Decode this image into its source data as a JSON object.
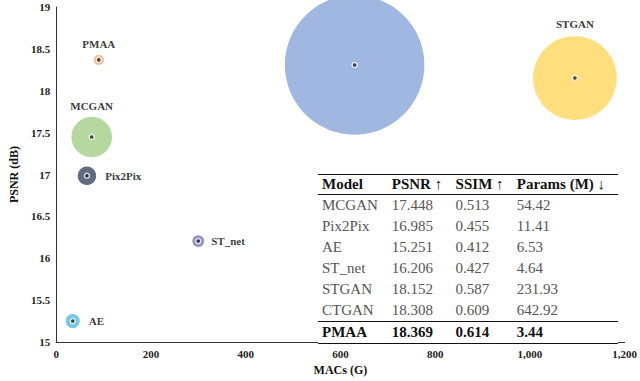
{
  "chart_data": {
    "type": "scatter",
    "marker": "circle",
    "x_label": "MACs (G)",
    "y_label": "PSNR (dB)",
    "xlim": [
      0,
      1200
    ],
    "xticks": [
      0,
      200,
      400,
      600,
      800,
      1000,
      1200
    ],
    "ylim": [
      15,
      19
    ],
    "yticks": [
      15,
      15.5,
      16,
      16.5,
      17,
      17.5,
      18,
      18.5,
      19
    ],
    "grid": false,
    "series": [
      {
        "name": "MCGAN",
        "color": "#a9d18e",
        "x": [
          75
        ],
        "values": [
          17.448
        ],
        "ssim": [
          0.513
        ],
        "params": [
          54.42
        ]
      },
      {
        "name": "Pix2Pix",
        "color": "#44546a",
        "x": [
          65
        ],
        "values": [
          16.985
        ],
        "ssim": [
          0.455
        ],
        "params": [
          11.41
        ]
      },
      {
        "name": "AE",
        "color": "#5bc0de",
        "x": [
          35
        ],
        "values": [
          15.251
        ],
        "ssim": [
          0.412
        ],
        "params": [
          6.53
        ]
      },
      {
        "name": "ST_net",
        "color": "#8080c0",
        "x": [
          300
        ],
        "values": [
          16.206
        ],
        "ssim": [
          0.427
        ],
        "params": [
          4.64
        ]
      },
      {
        "name": "STGAN",
        "color": "#ffd966",
        "x": [
          1095
        ],
        "values": [
          18.152
        ],
        "ssim": [
          0.587
        ],
        "params": [
          231.93
        ]
      },
      {
        "name": "CTGAN",
        "color": "#8faadc",
        "x": [
          630
        ],
        "values": [
          18.308
        ],
        "ssim": [
          0.609
        ],
        "params": [
          642.92
        ]
      },
      {
        "name": "PMAA",
        "color": "#f4b183",
        "x": [
          90
        ],
        "values": [
          18.369
        ],
        "ssim": [
          0.614
        ],
        "params": [
          3.44
        ]
      }
    ],
    "table": {
      "columns": [
        "Model",
        "PSNR ↑",
        "SSIM ↑",
        "Params (M) ↓"
      ]
    }
  }
}
